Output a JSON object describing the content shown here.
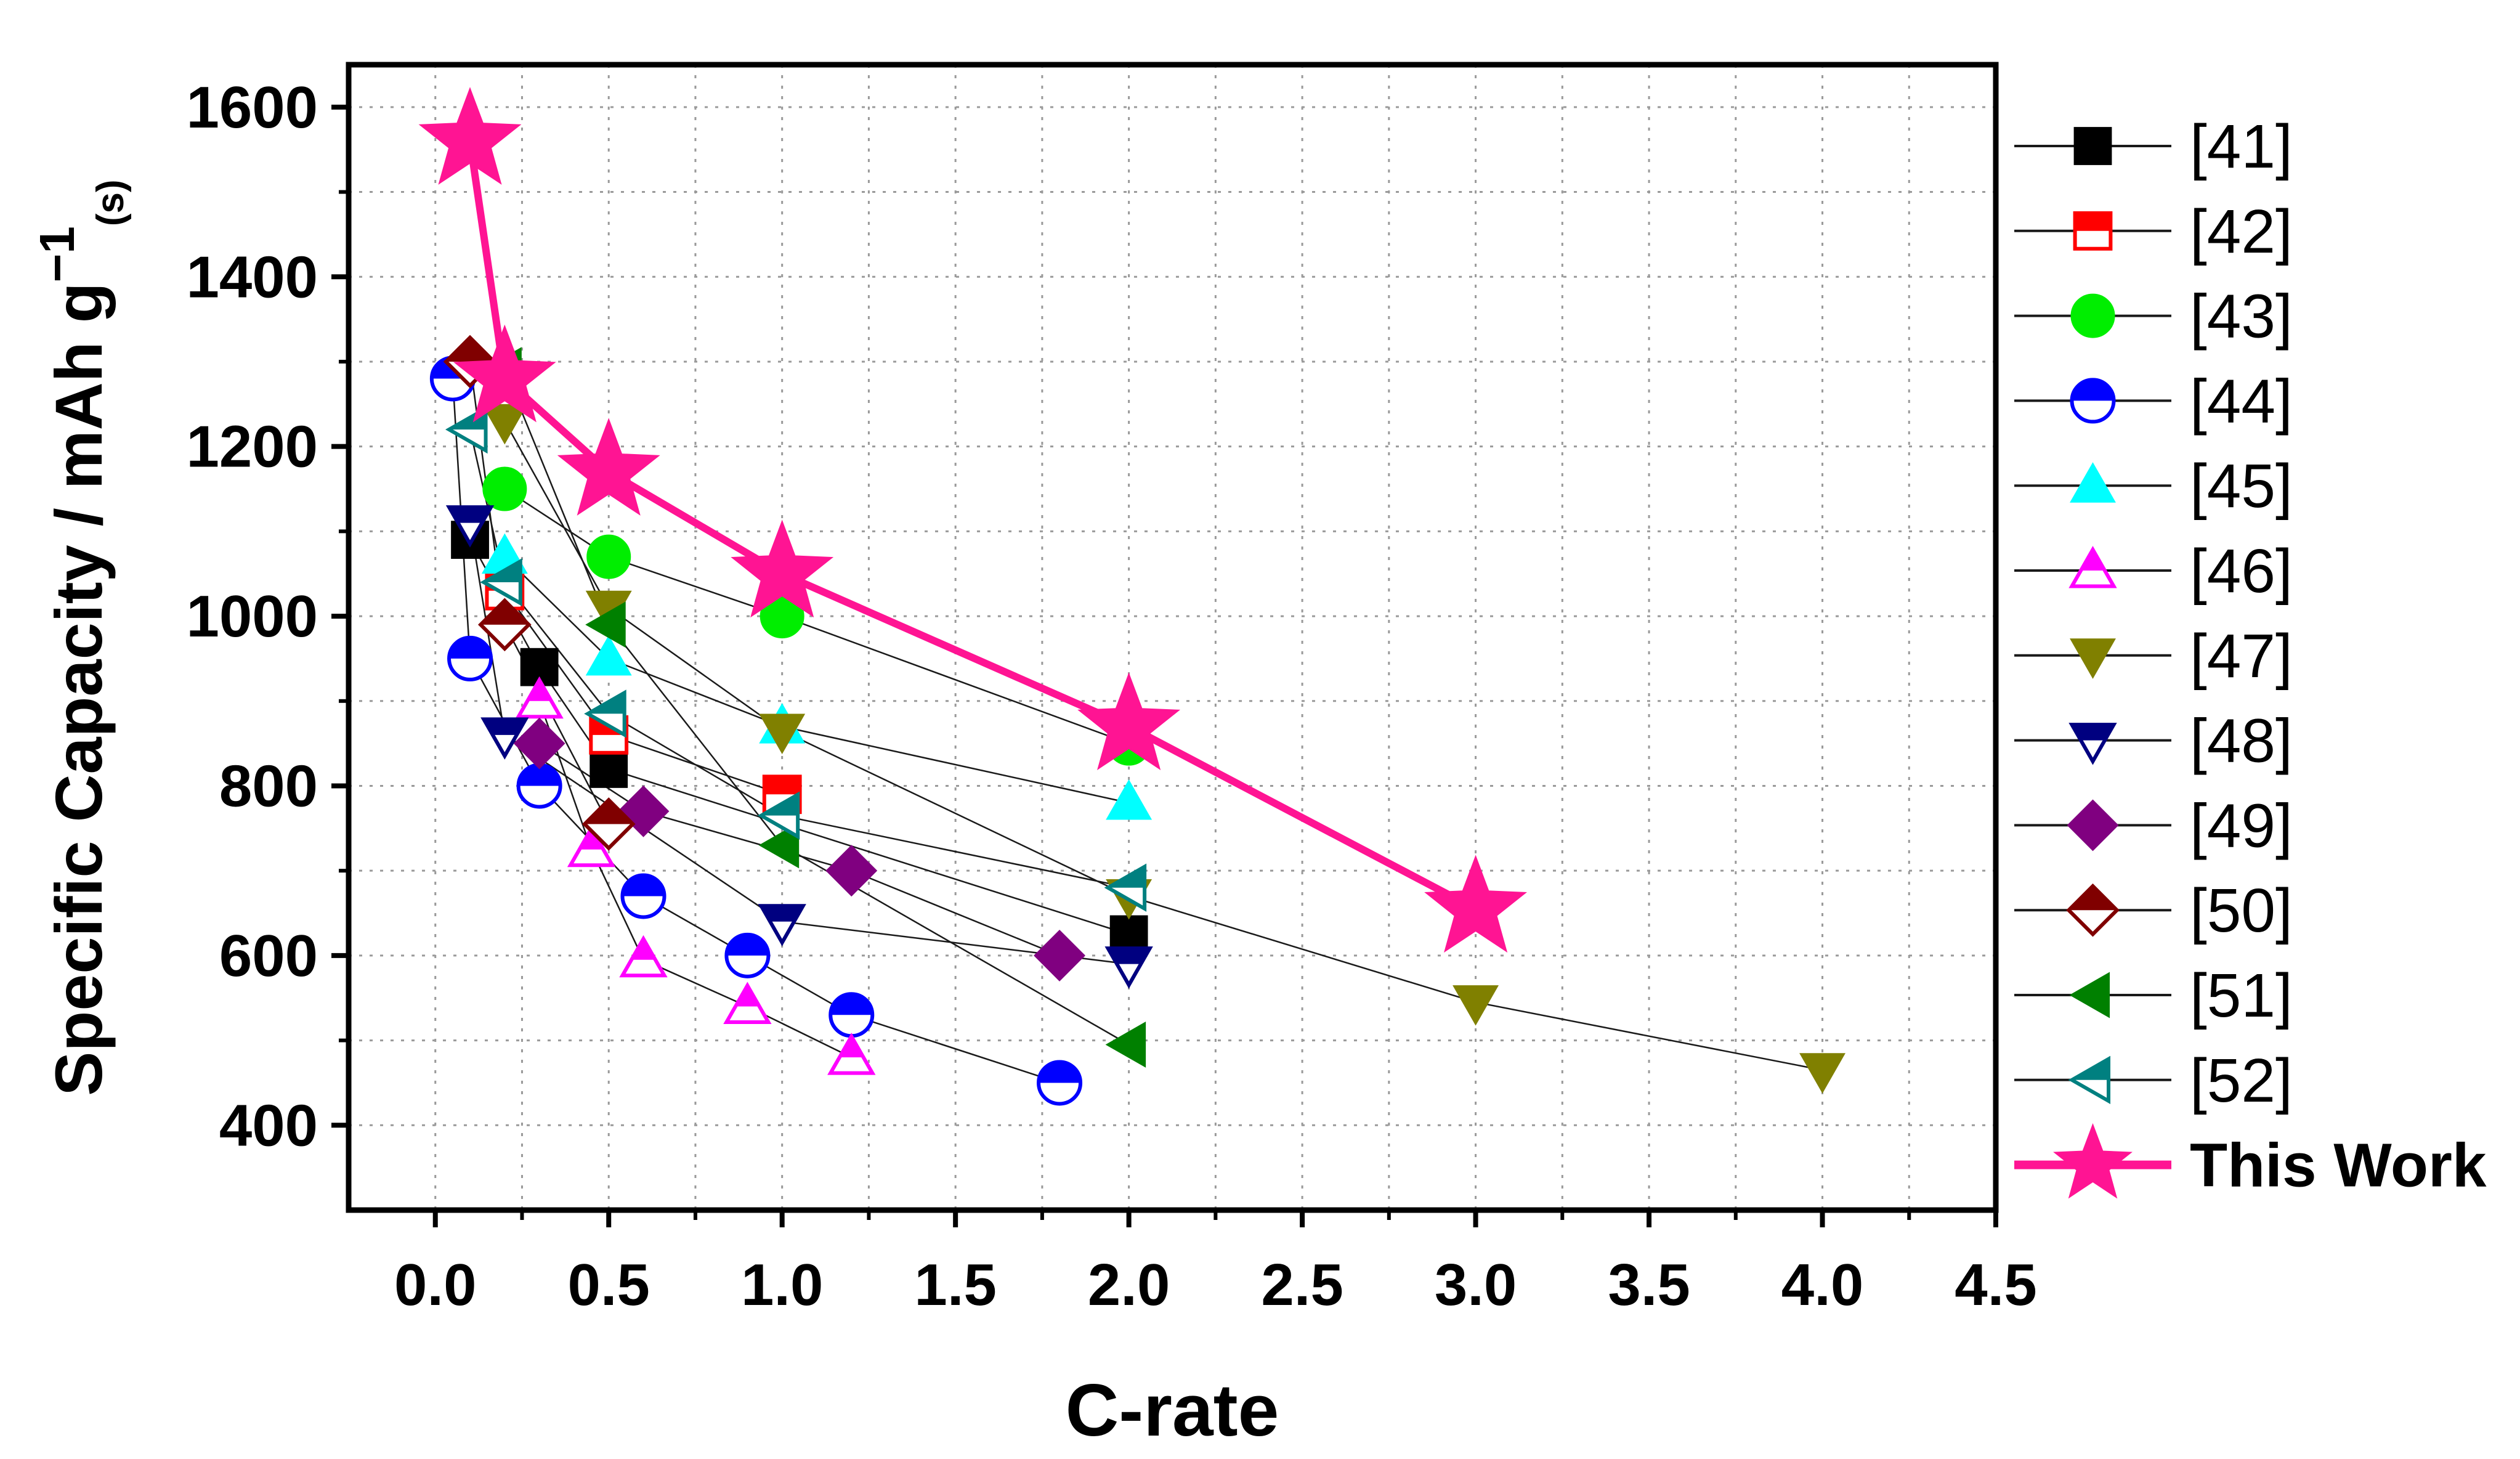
{
  "chart_data": {
    "type": "scatter",
    "title": "",
    "xlabel": "C-rate",
    "ylabel": {
      "main": "Specific Capacity / mAh g",
      "superscript": "−1",
      "subscript": "(s)"
    },
    "xlim": [
      -0.25,
      4.5
    ],
    "ylim": [
      300,
      1650
    ],
    "x_ticks": [
      "0.0",
      "0.5",
      "1.0",
      "1.5",
      "2.0",
      "2.5",
      "3.0",
      "3.5",
      "4.0",
      "4.5"
    ],
    "y_ticks": [
      "400",
      "600",
      "800",
      "1000",
      "1200",
      "1400",
      "1600"
    ],
    "grid": true,
    "legend_position": "right",
    "series": [
      {
        "name": "[41]",
        "marker": "square",
        "fill": "full",
        "color": "#000000",
        "x": [
          0.1,
          0.3,
          0.5,
          2.0
        ],
        "y": [
          1090,
          940,
          820,
          625
        ]
      },
      {
        "name": "[42]",
        "marker": "square",
        "fill": "top",
        "color": "#ff0000",
        "x": [
          0.2,
          0.5,
          1.0
        ],
        "y": [
          1030,
          860,
          790
        ]
      },
      {
        "name": "[43]",
        "marker": "circle",
        "fill": "full",
        "color": "#00ee00",
        "x": [
          0.2,
          0.5,
          1.0,
          2.0
        ],
        "y": [
          1150,
          1070,
          1000,
          850
        ]
      },
      {
        "name": "[44]",
        "marker": "circle",
        "fill": "top",
        "color": "#0000ff",
        "x": [
          0.05,
          0.1,
          0.3,
          0.6,
          0.9,
          1.2,
          1.8
        ],
        "y": [
          1280,
          950,
          800,
          670,
          600,
          530,
          450
        ]
      },
      {
        "name": "[45]",
        "marker": "triangle-up",
        "fill": "full",
        "color": "#00ffff",
        "x": [
          0.2,
          0.5,
          1.0,
          2.0
        ],
        "y": [
          1070,
          950,
          870,
          780
        ]
      },
      {
        "name": "[46]",
        "marker": "triangle-up",
        "fill": "top",
        "color": "#ff00ff",
        "x": [
          0.3,
          0.45,
          0.6,
          0.9,
          1.2
        ],
        "y": [
          900,
          725,
          595,
          540,
          480
        ]
      },
      {
        "name": "[47]",
        "marker": "triangle-down",
        "fill": "full",
        "color": "#808000",
        "x": [
          0.2,
          0.5,
          1.0,
          2.0,
          3.0,
          4.0
        ],
        "y": [
          1230,
          1010,
          865,
          670,
          545,
          465
        ]
      },
      {
        "name": "[48]",
        "marker": "triangle-down",
        "fill": "top",
        "color": "#000080",
        "x": [
          0.1,
          0.2,
          1.0,
          2.0
        ],
        "y": [
          1110,
          860,
          640,
          590
        ]
      },
      {
        "name": "[49]",
        "marker": "diamond",
        "fill": "full",
        "color": "#800080",
        "x": [
          0.3,
          0.6,
          1.2,
          1.8
        ],
        "y": [
          850,
          770,
          700,
          600
        ]
      },
      {
        "name": "[50]",
        "marker": "diamond",
        "fill": "top",
        "color": "#800000",
        "x": [
          0.1,
          0.2,
          0.5
        ],
        "y": [
          1300,
          990,
          755
        ]
      },
      {
        "name": "[51]",
        "marker": "triangle-left",
        "fill": "full",
        "color": "#008000",
        "x": [
          0.2,
          0.5,
          1.0,
          2.0
        ],
        "y": [
          1290,
          990,
          730,
          495
        ]
      },
      {
        "name": "[52]",
        "marker": "triangle-left",
        "fill": "top",
        "color": "#008080",
        "x": [
          0.1,
          0.2,
          0.5,
          1.0,
          2.0
        ],
        "y": [
          1220,
          1040,
          885,
          765,
          680
        ]
      },
      {
        "name": "This Work",
        "marker": "star",
        "fill": "full",
        "color": "#ff1493",
        "x": [
          0.1,
          0.2,
          0.5,
          1.0,
          2.0,
          3.0
        ],
        "y": [
          1560,
          1280,
          1170,
          1050,
          870,
          655
        ]
      }
    ]
  }
}
